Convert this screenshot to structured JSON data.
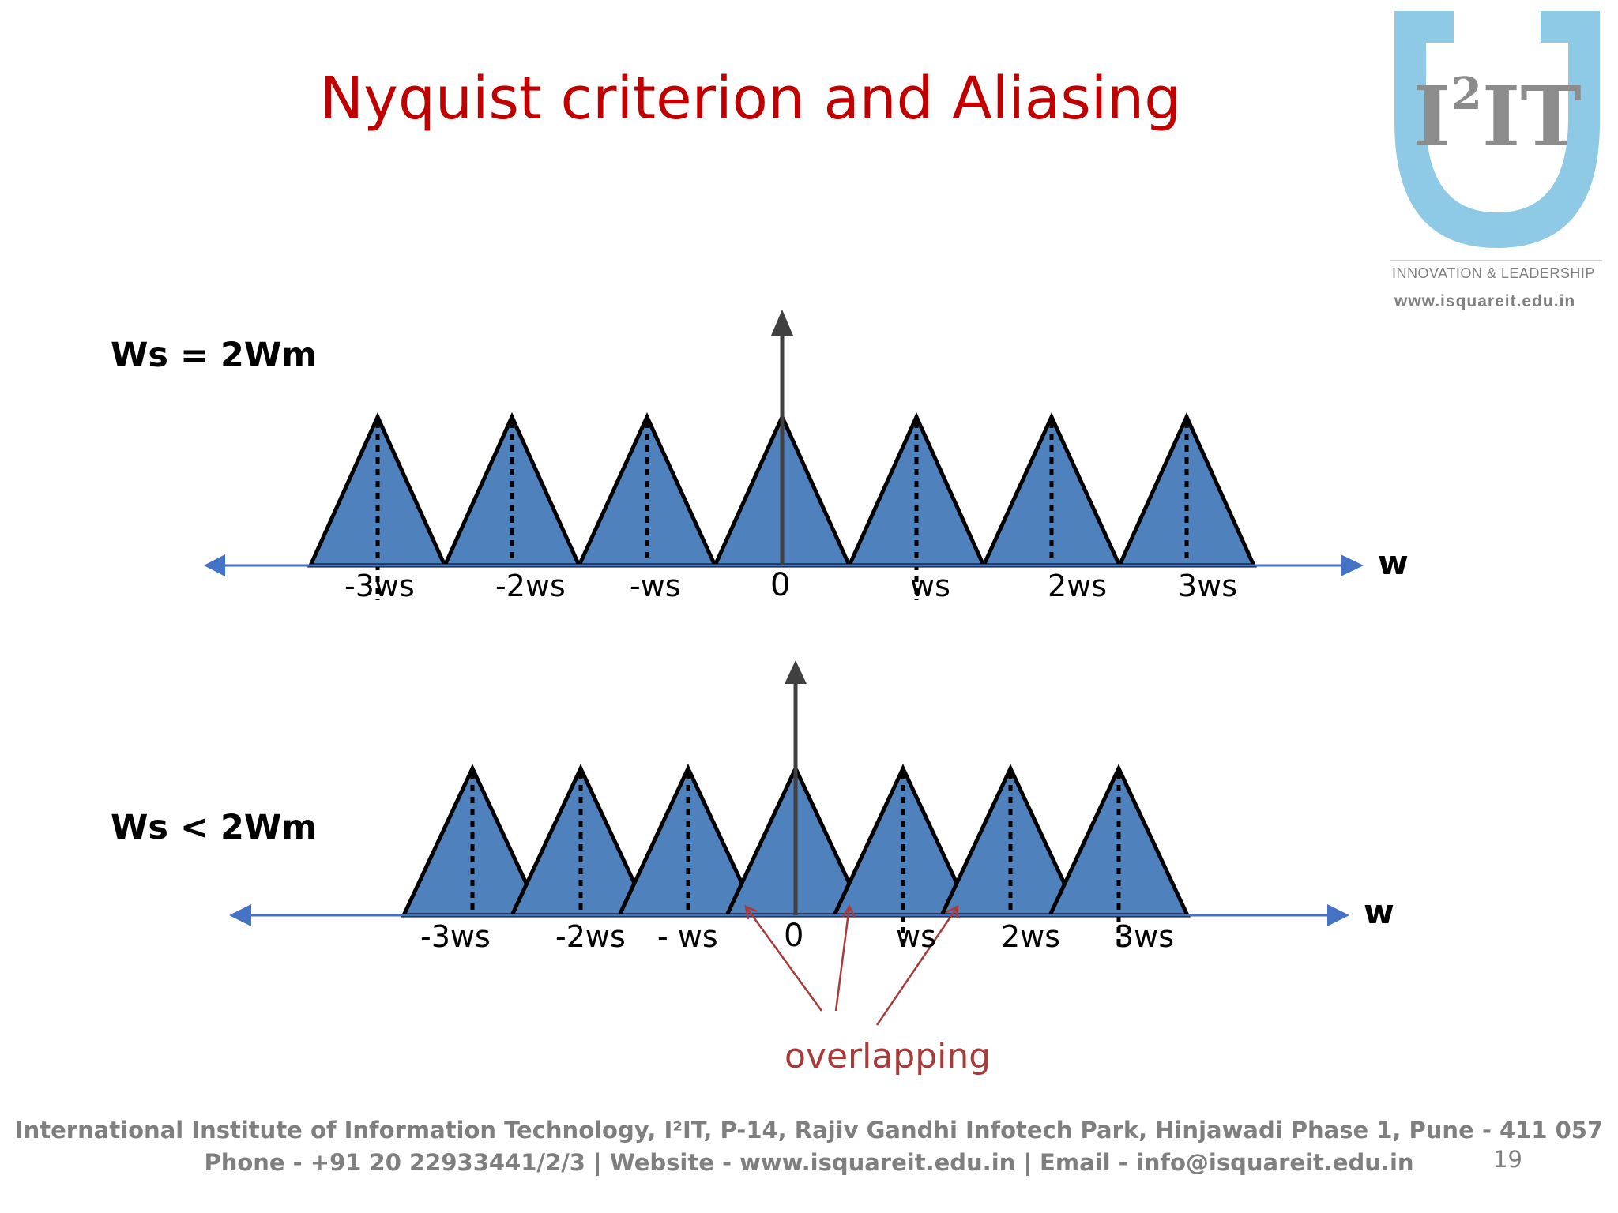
{
  "slide": {
    "title": "Nyquist criterion and Aliasing",
    "page_number": "19"
  },
  "logo": {
    "text": "I²IT",
    "tagline": "INNOVATION & LEADERSHIP",
    "website": "www.isquareit.edu.in",
    "colors": {
      "shield": "#8ecae6",
      "letters": "#8c8c8c"
    }
  },
  "diagram_top": {
    "condition": "Ws = 2Wm",
    "axis_label": "w",
    "origin_label": "0",
    "ticks": [
      "-3ws",
      "-2ws",
      "-ws",
      "0",
      "ws",
      "2ws",
      "3ws"
    ]
  },
  "diagram_bottom": {
    "condition": "Ws < 2Wm",
    "axis_label": "w",
    "origin_label": "0",
    "ticks": [
      "-3ws",
      "-2ws",
      "- ws",
      "0",
      "ws",
      "2ws",
      "3ws"
    ],
    "annotation": "overlapping"
  },
  "colors": {
    "title": "#c00000",
    "triangle_fill": "#4f81bd",
    "axis": "#4472c4",
    "annotation": "#a93a3a",
    "footer": "#7f7f7f"
  },
  "footer": {
    "line1": "International Institute of Information Technology, I²IT, P-14, Rajiv Gandhi Infotech Park, Hinjawadi Phase 1, Pune - 411 057",
    "line2": "Phone - +91 20 22933441/2/3 | Website - www.isquareit.edu.in | Email - info@isquareit.edu.in"
  }
}
